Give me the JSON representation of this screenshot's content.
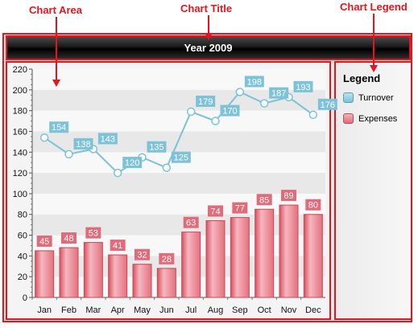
{
  "annotations": {
    "chart_area": "Chart Area",
    "chart_title": "Chart Title",
    "chart_legend": "Chart Legend"
  },
  "colors": {
    "annotation_red": "#e8141b",
    "turnover": "#7cc2d8",
    "expenses": "#e06b7a"
  },
  "legend": {
    "title": "Legend",
    "items": [
      {
        "label": "Turnover",
        "icon": "turnover-swatch"
      },
      {
        "label": "Expenses",
        "icon": "expenses-swatch"
      }
    ]
  },
  "chart_data": {
    "type": "bar",
    "title": "Year 2009",
    "xlabel": "",
    "ylabel": "",
    "ylim": [
      0,
      220
    ],
    "yticks": [
      0,
      20,
      40,
      60,
      80,
      100,
      120,
      140,
      160,
      180,
      200,
      220
    ],
    "grid": true,
    "legend_position": "right",
    "categories": [
      "Jan",
      "Feb",
      "Mar",
      "Apr",
      "May",
      "Jun",
      "Jul",
      "Aug",
      "Sep",
      "Oct",
      "Nov",
      "Dec"
    ],
    "series": [
      {
        "name": "Turnover",
        "type": "line",
        "values": [
          154,
          138,
          143,
          120,
          135,
          125,
          179,
          170,
          198,
          187,
          193,
          176
        ]
      },
      {
        "name": "Expenses",
        "type": "bar",
        "values": [
          45,
          48,
          53,
          41,
          32,
          28,
          63,
          74,
          77,
          85,
          89,
          80
        ]
      }
    ]
  }
}
